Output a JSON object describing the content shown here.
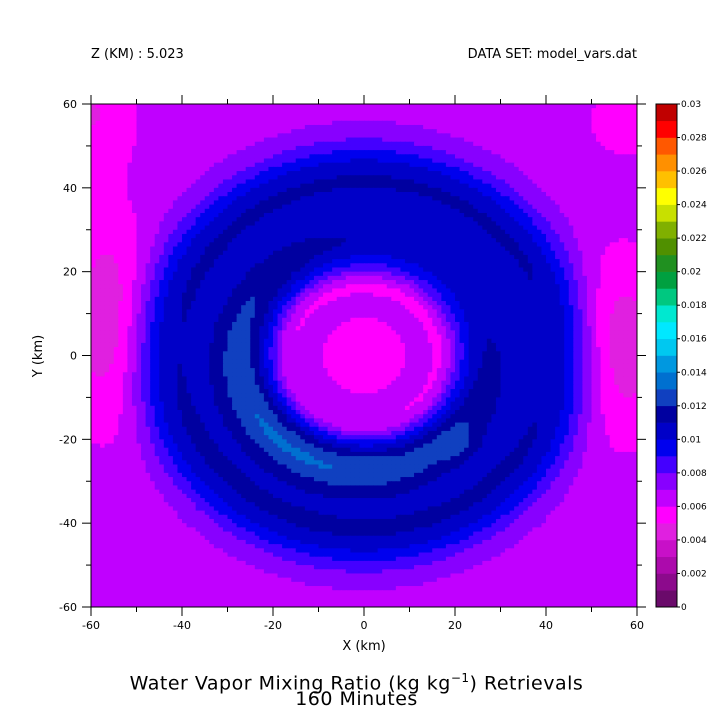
{
  "header": {
    "left": "Z (KM) : 5.023",
    "right": "DATA SET: model_vars.dat"
  },
  "chart_data": {
    "type": "heatmap",
    "title_prefix": "Water Vapor Mixing Ratio (kg kg",
    "title_sup": "−1",
    "title_suffix": ") Retrievals",
    "subtitle": "160 Minutes",
    "xlabel": "X (km)",
    "ylabel": "Y (km)",
    "xlim": [
      -60,
      60
    ],
    "ylim": [
      -60,
      60
    ],
    "x_ticks": [
      -60,
      -40,
      -20,
      0,
      20,
      40,
      60
    ],
    "y_ticks": [
      -60,
      -40,
      -20,
      0,
      20,
      40,
      60
    ],
    "colorbar": {
      "levels": [
        0,
        0.001,
        0.002,
        0.003,
        0.004,
        0.005,
        0.006,
        0.007,
        0.008,
        0.009,
        0.01,
        0.011,
        0.012,
        0.013,
        0.014,
        0.015,
        0.016,
        0.017,
        0.018,
        0.019,
        0.02,
        0.021,
        0.022,
        0.023,
        0.024,
        0.025,
        0.026,
        0.027,
        0.028,
        0.029,
        0.03
      ],
      "tick_labels": [
        "0",
        "0.002",
        "0.004",
        "0.006",
        "0.008",
        "0.01",
        "0.012",
        "0.014",
        "0.016",
        "0.018",
        "0.02",
        "0.022",
        "0.024",
        "0.026",
        "0.028",
        "0.03"
      ],
      "colors": [
        "#3a0a4a",
        "#6a0a6a",
        "#8c0a8c",
        "#ac0aac",
        "#c810c8",
        "#e020e0",
        "#ff00ff",
        "#c000ff",
        "#8800ff",
        "#4400ff",
        "#0000ee",
        "#0000c8",
        "#0000a0",
        "#1040c0",
        "#0070d0",
        "#0098e0",
        "#00c8f0",
        "#00e8ff",
        "#00e8d0",
        "#00c880",
        "#00a040",
        "#209020",
        "#509000",
        "#80b000",
        "#c8e000",
        "#ffff00",
        "#ffc000",
        "#ff9000",
        "#ff5800",
        "#ff0000",
        "#c00000",
        "#800000"
      ]
    },
    "field_description": "spiral moisture field",
    "value_min": 0.004,
    "value_max": 0.017
  }
}
